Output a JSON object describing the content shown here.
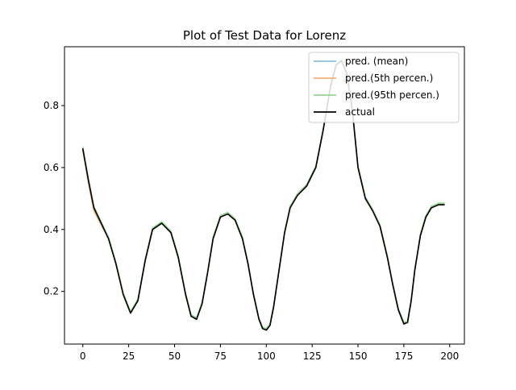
{
  "chart_data": {
    "type": "line",
    "title": "Plot of Test Data for Lorenz",
    "xlabel": "",
    "ylabel": "",
    "xlim": [
      -10,
      208
    ],
    "ylim": [
      0.03,
      0.99
    ],
    "xticks": [
      0,
      25,
      50,
      75,
      100,
      125,
      150,
      175,
      200
    ],
    "yticks": [
      0.2,
      0.4,
      0.6,
      0.8
    ],
    "grid": false,
    "legend_position": "top-right",
    "series": [
      {
        "name": "pred. (mean)",
        "color": "#8fc0e0",
        "x": [
          0,
          3,
          6,
          10,
          14,
          18,
          22,
          26,
          30,
          34,
          38,
          43,
          48,
          52,
          56,
          59,
          62,
          65,
          68,
          71,
          75,
          79,
          83,
          87,
          90,
          93,
          96,
          98,
          100,
          102,
          104,
          107,
          110,
          113,
          117,
          122,
          127,
          131,
          135,
          138,
          141,
          144,
          147,
          150,
          154,
          158,
          162,
          166,
          169,
          172,
          175,
          177,
          179,
          181,
          184,
          187,
          190,
          194,
          197
        ],
        "values": [
          0.66,
          0.56,
          0.47,
          0.42,
          0.37,
          0.29,
          0.19,
          0.13,
          0.17,
          0.3,
          0.4,
          0.42,
          0.39,
          0.31,
          0.19,
          0.12,
          0.11,
          0.16,
          0.26,
          0.37,
          0.44,
          0.45,
          0.43,
          0.37,
          0.29,
          0.19,
          0.11,
          0.08,
          0.075,
          0.09,
          0.15,
          0.27,
          0.39,
          0.47,
          0.51,
          0.54,
          0.6,
          0.72,
          0.86,
          0.93,
          0.945,
          0.9,
          0.78,
          0.6,
          0.5,
          0.46,
          0.41,
          0.31,
          0.22,
          0.14,
          0.095,
          0.1,
          0.17,
          0.27,
          0.38,
          0.44,
          0.47,
          0.48,
          0.48
        ]
      },
      {
        "name": "pred.(5th percen.)",
        "color": "#f5b07a",
        "x": [
          0,
          3,
          6,
          10,
          14,
          18,
          22,
          26,
          30,
          34,
          38,
          43,
          48,
          52,
          56,
          59,
          62,
          65,
          68,
          71,
          75,
          79,
          83,
          87,
          90,
          93,
          96,
          98,
          100,
          102,
          104,
          107,
          110,
          113,
          117,
          122,
          127,
          131,
          135,
          138,
          141,
          144,
          147,
          150,
          154,
          158,
          162,
          166,
          169,
          172,
          175,
          177,
          179,
          181,
          184,
          187,
          190,
          194,
          197
        ],
        "values": [
          0.655,
          0.55,
          0.46,
          0.415,
          0.37,
          0.29,
          0.19,
          0.13,
          0.17,
          0.3,
          0.4,
          0.42,
          0.39,
          0.31,
          0.19,
          0.12,
          0.11,
          0.16,
          0.26,
          0.37,
          0.44,
          0.45,
          0.43,
          0.37,
          0.29,
          0.19,
          0.11,
          0.08,
          0.075,
          0.09,
          0.15,
          0.27,
          0.39,
          0.47,
          0.51,
          0.54,
          0.6,
          0.72,
          0.86,
          0.93,
          0.945,
          0.9,
          0.78,
          0.6,
          0.5,
          0.46,
          0.41,
          0.31,
          0.22,
          0.14,
          0.095,
          0.1,
          0.17,
          0.27,
          0.38,
          0.44,
          0.47,
          0.48,
          0.48
        ]
      },
      {
        "name": "pred.(95th percen.)",
        "color": "#94d694",
        "x": [
          0,
          3,
          6,
          10,
          14,
          18,
          22,
          26,
          30,
          34,
          38,
          43,
          48,
          52,
          56,
          59,
          62,
          65,
          68,
          71,
          75,
          79,
          83,
          87,
          90,
          93,
          96,
          98,
          100,
          102,
          104,
          107,
          110,
          113,
          117,
          122,
          127,
          131,
          135,
          138,
          141,
          144,
          147,
          150,
          154,
          158,
          162,
          166,
          169,
          172,
          175,
          177,
          179,
          181,
          184,
          187,
          190,
          194,
          197
        ],
        "values": [
          0.665,
          0.565,
          0.475,
          0.425,
          0.375,
          0.295,
          0.195,
          0.135,
          0.175,
          0.305,
          0.405,
          0.425,
          0.395,
          0.315,
          0.195,
          0.125,
          0.115,
          0.165,
          0.265,
          0.375,
          0.445,
          0.455,
          0.435,
          0.375,
          0.295,
          0.195,
          0.115,
          0.085,
          0.08,
          0.095,
          0.155,
          0.275,
          0.395,
          0.475,
          0.515,
          0.545,
          0.605,
          0.725,
          0.865,
          0.935,
          0.95,
          0.905,
          0.785,
          0.605,
          0.505,
          0.465,
          0.415,
          0.315,
          0.225,
          0.145,
          0.1,
          0.105,
          0.175,
          0.275,
          0.385,
          0.445,
          0.475,
          0.485,
          0.485
        ]
      },
      {
        "name": "actual",
        "color": "#000000",
        "x": [
          0,
          3,
          6,
          10,
          14,
          18,
          22,
          26,
          30,
          34,
          38,
          43,
          48,
          52,
          56,
          59,
          62,
          65,
          68,
          71,
          75,
          79,
          83,
          87,
          90,
          93,
          96,
          98,
          100,
          102,
          104,
          107,
          110,
          113,
          117,
          122,
          127,
          131,
          135,
          138,
          141,
          144,
          147,
          150,
          154,
          158,
          162,
          166,
          169,
          172,
          175,
          177,
          179,
          181,
          184,
          187,
          190,
          194,
          197
        ],
        "values": [
          0.66,
          0.56,
          0.47,
          0.42,
          0.37,
          0.29,
          0.19,
          0.13,
          0.17,
          0.3,
          0.4,
          0.42,
          0.39,
          0.31,
          0.19,
          0.12,
          0.11,
          0.16,
          0.26,
          0.37,
          0.44,
          0.45,
          0.43,
          0.37,
          0.29,
          0.19,
          0.11,
          0.08,
          0.075,
          0.09,
          0.15,
          0.27,
          0.39,
          0.47,
          0.51,
          0.54,
          0.6,
          0.72,
          0.86,
          0.93,
          0.945,
          0.9,
          0.78,
          0.6,
          0.5,
          0.46,
          0.41,
          0.31,
          0.22,
          0.14,
          0.095,
          0.1,
          0.17,
          0.27,
          0.38,
          0.44,
          0.47,
          0.48,
          0.48
        ]
      }
    ]
  }
}
